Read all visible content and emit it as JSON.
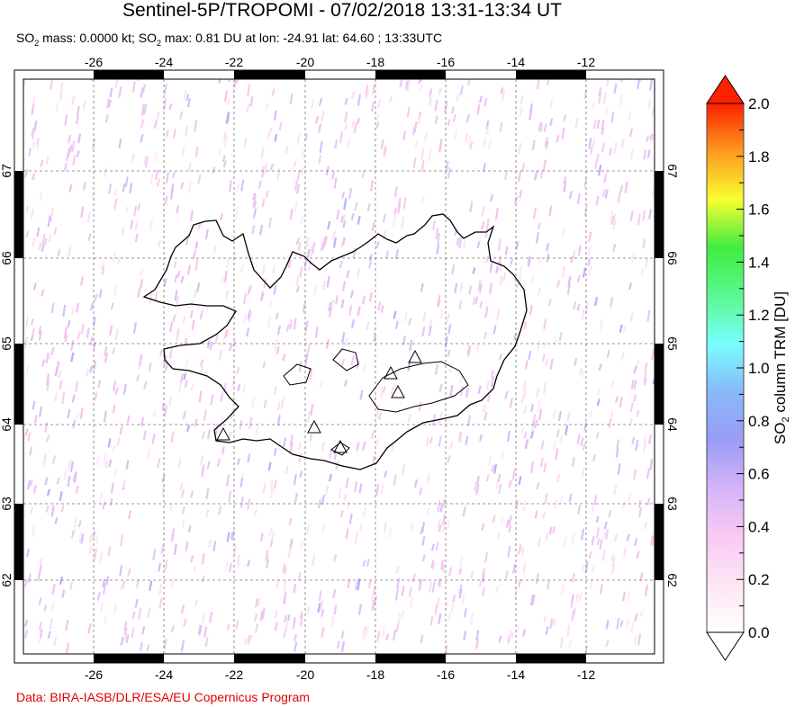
{
  "title": "Sentinel-5P/TROPOMI - 07/02/2018 13:31-13:34 UT",
  "subtitle": {
    "mass_prefix": "SO",
    "mass_sub": "2",
    "mass_text": " mass: 0.0000 kt; SO",
    "max_sub": "2",
    "max_text": " max: 0.81 DU at lon: -24.91 lat: 64.60 ; 13:33UTC"
  },
  "map": {
    "lon_ticks": [
      "-26",
      "-24",
      "-22",
      "-20",
      "-18",
      "-16",
      "-14",
      "-12"
    ],
    "lat_ticks": [
      "67",
      "66",
      "65",
      "64",
      "63",
      "62"
    ],
    "volcano_marker": "triangle-icon",
    "coastline_color": "#000000",
    "background_noise_color": "#f7c8ec"
  },
  "colorbar": {
    "label_prefix": "SO",
    "label_sub": "2",
    "label_text": " column TRM [DU]",
    "ticks": [
      "2.0",
      "1.8",
      "1.6",
      "1.4",
      "1.2",
      "1.0",
      "0.8",
      "0.6",
      "0.4",
      "0.2",
      "0.0"
    ],
    "range": [
      0.0,
      2.0
    ],
    "colors": [
      "#ffffff",
      "#fde6f3",
      "#fac8f5",
      "#d4b4f8",
      "#9a9cf6",
      "#88b8fa",
      "#78fefe",
      "#5af890",
      "#40ec40",
      "#f8fe30",
      "#fd9a20",
      "#ff2000"
    ]
  },
  "credit": "Data: BIRA-IASB/DLR/ESA/EU Copernicus Program"
}
